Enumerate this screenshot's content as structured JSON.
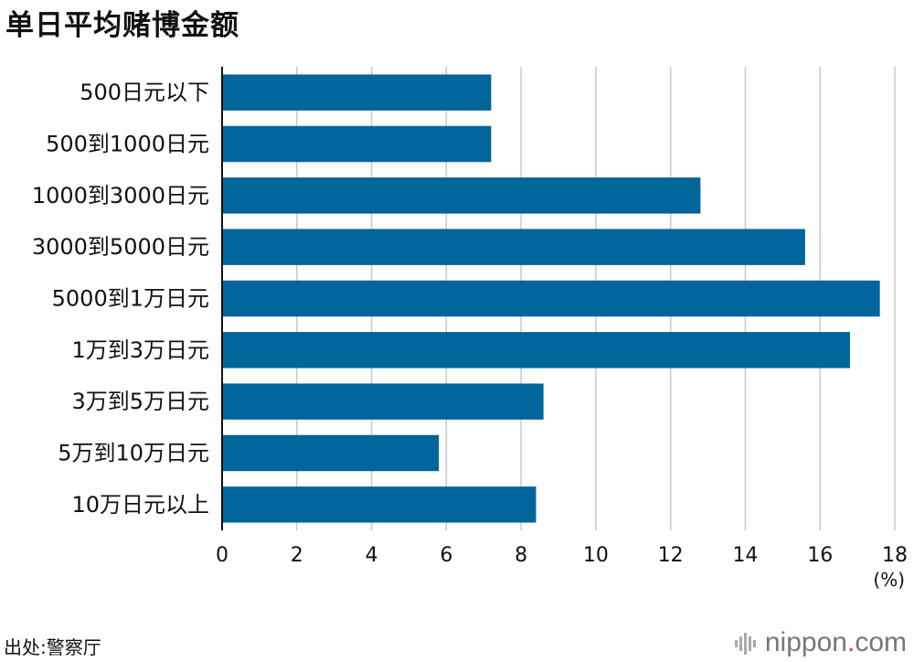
{
  "chart_data": {
    "type": "bar",
    "orientation": "horizontal",
    "title": "单日平均赌博金额",
    "categories": [
      "500日元以下",
      "500到1000日元",
      "1000到3000日元",
      "3000到5000日元",
      "5000到1万日元",
      "1万到3万日元",
      "3万到5万日元",
      "5万到10万日元",
      "10万日元以上"
    ],
    "values": [
      7.2,
      7.2,
      12.8,
      15.6,
      17.6,
      16.8,
      8.6,
      5.8,
      8.4
    ],
    "xlim": [
      0,
      18
    ],
    "xticks": [
      0,
      2,
      4,
      6,
      8,
      10,
      12,
      14,
      16,
      18
    ],
    "unit": "(%)",
    "grid": true,
    "bar_color": "#00659a",
    "grid_color": "#c8c8c8"
  },
  "source": "出处:警察厅",
  "brand": {
    "name": "nippon",
    "dot": ".",
    "suffix": "com",
    "icon": "nippon-logo-icon"
  }
}
